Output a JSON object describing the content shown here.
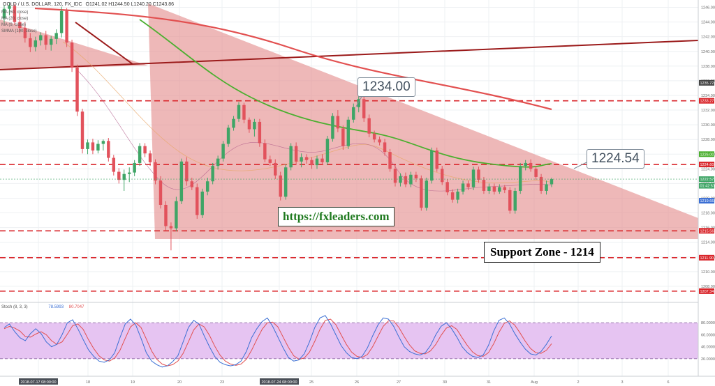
{
  "header": {
    "symbol": "GOLD / U.S. DOLLAR, 120, FX_IDC",
    "ohlc": "O1241.02  H1244.50  L1240.20  C1243.86"
  },
  "legend": [
    "MA (50, close)",
    "MA (20, close)",
    "MA (9, close)",
    "SMMA (100, close)"
  ],
  "stoch_label": "Stoch (8, 3, 3)",
  "stoch_values": [
    "78.5993",
    "80.7047"
  ],
  "annotations": {
    "high_label": "1234.00",
    "current_label": "1224.54",
    "url": "https://fxleaders.com",
    "support": "Support Zone - 1214"
  },
  "colors": {
    "up": "#3fa566",
    "down": "#e2525c",
    "triangle": "#e38c8c",
    "ma_green": "#4caf30",
    "ma_red": "#e25050",
    "trendline": "#9b1a1a",
    "stoch_bg": "#e6c4f2",
    "stoch_k": "#3b6fd4",
    "stoch_d": "#e25050",
    "level": "#d9262b"
  },
  "chart_data": {
    "type": "candlestick",
    "ylim": [
      1206,
      1247
    ],
    "x_ticks": [
      "2018-07-17 08:00:00",
      "18",
      "19",
      "20",
      "23",
      "2018-07-24 08:00:00",
      "25",
      "26",
      "27",
      "30",
      "31",
      "Aug",
      "2",
      "3",
      "6"
    ],
    "y_ticks": [
      1208,
      1210,
      1212,
      1214,
      1216,
      1218,
      1220,
      1222,
      1224,
      1226,
      1228,
      1230,
      1232,
      1234,
      1236,
      1238,
      1240,
      1242,
      1244,
      1246
    ],
    "price_labels": [
      "1235.72",
      "1233.27",
      "1224.60",
      "1226.00",
      "1222.57",
      "01:42:57",
      "1219.66",
      "1215.56",
      "1211.90",
      "1207.34"
    ],
    "horizontal_levels": [
      1233.27,
      1224.6,
      1215.56,
      1211.9,
      1207.34
    ],
    "ohlc": [
      [
        1244.5,
        1246.3,
        1243.8,
        1245.8
      ],
      [
        1245.8,
        1246.6,
        1244.9,
        1246.2
      ],
      [
        1246.2,
        1246.5,
        1243.6,
        1244.0
      ],
      [
        1244.0,
        1245.2,
        1242.5,
        1243.2
      ],
      [
        1243.2,
        1244.0,
        1241.2,
        1241.8
      ],
      [
        1241.8,
        1242.5,
        1239.9,
        1240.6
      ],
      [
        1240.6,
        1242.0,
        1240.0,
        1241.5
      ],
      [
        1241.5,
        1242.6,
        1240.8,
        1242.2
      ],
      [
        1242.2,
        1242.8,
        1240.2,
        1240.9
      ],
      [
        1240.9,
        1242.1,
        1240.1,
        1241.7
      ],
      [
        1241.7,
        1243.0,
        1241.0,
        1242.5
      ],
      [
        1242.5,
        1246.1,
        1241.9,
        1245.5
      ],
      [
        1245.5,
        1245.9,
        1240.6,
        1241.2
      ],
      [
        1241.2,
        1241.6,
        1237.2,
        1237.8
      ],
      [
        1237.8,
        1238.2,
        1231.2,
        1231.8
      ],
      [
        1231.8,
        1232.2,
        1226.1,
        1226.7
      ],
      [
        1226.7,
        1228.0,
        1226.0,
        1227.6
      ],
      [
        1227.6,
        1228.1,
        1226.0,
        1226.5
      ],
      [
        1226.5,
        1227.9,
        1226.1,
        1227.4
      ],
      [
        1227.4,
        1228.0,
        1226.5,
        1227.8
      ],
      [
        1227.8,
        1228.2,
        1225.0,
        1225.5
      ],
      [
        1225.5,
        1225.9,
        1223.1,
        1223.6
      ],
      [
        1223.6,
        1224.1,
        1222.0,
        1222.5
      ],
      [
        1222.5,
        1223.9,
        1221.0,
        1223.3
      ],
      [
        1223.3,
        1224.2,
        1222.2,
        1223.5
      ],
      [
        1223.5,
        1225.2,
        1223.0,
        1224.8
      ],
      [
        1224.8,
        1227.5,
        1224.4,
        1227.1
      ],
      [
        1227.1,
        1227.5,
        1225.6,
        1226.1
      ],
      [
        1226.1,
        1226.5,
        1224.4,
        1224.9
      ],
      [
        1224.9,
        1225.3,
        1221.9,
        1222.4
      ],
      [
        1222.4,
        1223.0,
        1218.6,
        1219.1
      ],
      [
        1219.1,
        1219.6,
        1215.6,
        1216.2
      ],
      [
        1216.2,
        1216.7,
        1212.9,
        1215.9
      ],
      [
        1215.9,
        1220.2,
        1215.5,
        1219.6
      ],
      [
        1219.6,
        1225.4,
        1219.2,
        1225.0
      ],
      [
        1225.0,
        1225.6,
        1221.7,
        1222.3
      ],
      [
        1222.3,
        1222.8,
        1221.1,
        1221.5
      ],
      [
        1221.5,
        1222.0,
        1217.2,
        1217.7
      ],
      [
        1217.7,
        1221.3,
        1217.3,
        1220.9
      ],
      [
        1220.9,
        1222.8,
        1220.4,
        1222.3
      ],
      [
        1222.3,
        1224.8,
        1221.9,
        1224.4
      ],
      [
        1224.4,
        1225.8,
        1223.9,
        1225.4
      ],
      [
        1225.4,
        1227.8,
        1225.0,
        1227.4
      ],
      [
        1227.4,
        1230.0,
        1227.0,
        1229.6
      ],
      [
        1229.6,
        1231.2,
        1229.2,
        1230.8
      ],
      [
        1230.8,
        1233.1,
        1230.4,
        1232.7
      ],
      [
        1232.7,
        1233.0,
        1230.2,
        1230.7
      ],
      [
        1230.7,
        1231.0,
        1228.9,
        1229.4
      ],
      [
        1229.4,
        1230.8,
        1228.4,
        1230.4
      ],
      [
        1230.4,
        1230.8,
        1227.0,
        1227.5
      ],
      [
        1227.5,
        1228.0,
        1224.9,
        1225.3
      ],
      [
        1225.3,
        1225.8,
        1224.4,
        1224.8
      ],
      [
        1224.8,
        1225.3,
        1222.6,
        1223.1
      ],
      [
        1223.1,
        1223.6,
        1219.7,
        1220.2
      ],
      [
        1220.2,
        1224.6,
        1219.8,
        1224.2
      ],
      [
        1224.2,
        1227.5,
        1223.8,
        1227.1
      ],
      [
        1227.1,
        1227.6,
        1224.5,
        1225.0
      ],
      [
        1225.0,
        1226.1,
        1224.2,
        1225.6
      ],
      [
        1225.6,
        1226.0,
        1224.7,
        1225.2
      ],
      [
        1225.2,
        1225.6,
        1224.0,
        1224.5
      ],
      [
        1224.5,
        1225.8,
        1224.0,
        1225.4
      ],
      [
        1225.4,
        1226.0,
        1224.5,
        1224.9
      ],
      [
        1224.9,
        1228.5,
        1224.5,
        1228.1
      ],
      [
        1228.1,
        1231.6,
        1227.7,
        1231.2
      ],
      [
        1231.2,
        1232.0,
        1229.0,
        1229.5
      ],
      [
        1229.5,
        1229.9,
        1226.6,
        1227.1
      ],
      [
        1227.1,
        1231.1,
        1226.7,
        1230.7
      ],
      [
        1230.7,
        1232.9,
        1230.3,
        1232.4
      ],
      [
        1232.4,
        1234.0,
        1231.7,
        1233.5
      ],
      [
        1233.5,
        1233.8,
        1230.4,
        1230.9
      ],
      [
        1230.9,
        1231.4,
        1228.3,
        1228.8
      ],
      [
        1228.8,
        1229.2,
        1227.6,
        1228.0
      ],
      [
        1228.0,
        1228.4,
        1227.2,
        1227.6
      ],
      [
        1227.6,
        1228.1,
        1225.8,
        1226.3
      ],
      [
        1226.3,
        1226.7,
        1223.6,
        1224.0
      ],
      [
        1224.0,
        1224.5,
        1221.6,
        1222.1
      ],
      [
        1222.1,
        1223.4,
        1221.6,
        1223.0
      ],
      [
        1223.0,
        1223.5,
        1221.5,
        1221.9
      ],
      [
        1221.9,
        1223.6,
        1221.5,
        1223.2
      ],
      [
        1223.2,
        1223.6,
        1222.2,
        1222.7
      ],
      [
        1222.7,
        1223.1,
        1218.3,
        1218.7
      ],
      [
        1218.7,
        1222.8,
        1218.3,
        1222.4
      ],
      [
        1222.4,
        1226.9,
        1222.0,
        1226.5
      ],
      [
        1226.5,
        1226.9,
        1223.6,
        1224.0
      ],
      [
        1224.0,
        1224.4,
        1221.8,
        1222.2
      ],
      [
        1222.2,
        1222.6,
        1220.4,
        1220.8
      ],
      [
        1220.8,
        1221.2,
        1219.4,
        1219.8
      ],
      [
        1219.8,
        1221.3,
        1219.3,
        1220.9
      ],
      [
        1220.9,
        1222.4,
        1220.5,
        1222.0
      ],
      [
        1222.0,
        1222.4,
        1221.1,
        1221.5
      ],
      [
        1221.5,
        1224.3,
        1221.1,
        1223.9
      ],
      [
        1223.9,
        1224.3,
        1222.1,
        1222.5
      ],
      [
        1222.5,
        1222.9,
        1220.6,
        1221.0
      ],
      [
        1221.0,
        1222.0,
        1220.6,
        1221.6
      ],
      [
        1221.6,
        1222.0,
        1220.5,
        1220.9
      ],
      [
        1220.9,
        1221.9,
        1220.6,
        1221.5
      ],
      [
        1221.5,
        1221.8,
        1220.7,
        1221.1
      ],
      [
        1221.1,
        1221.5,
        1217.9,
        1218.3
      ],
      [
        1218.3,
        1221.4,
        1217.9,
        1221.0
      ],
      [
        1221.0,
        1224.8,
        1220.6,
        1224.4
      ],
      [
        1224.4,
        1225.2,
        1223.8,
        1224.8
      ],
      [
        1224.8,
        1225.3,
        1223.6,
        1224.0
      ],
      [
        1224.0,
        1224.4,
        1222.5,
        1222.9
      ],
      [
        1222.9,
        1223.3,
        1220.6,
        1221.0
      ],
      [
        1221.0,
        1222.4,
        1220.5,
        1221.9
      ],
      [
        1221.9,
        1222.8,
        1221.5,
        1222.6
      ]
    ],
    "stoch_k": [
      72,
      78,
      65,
      55,
      50,
      62,
      70,
      62,
      48,
      40,
      44,
      60,
      80,
      85,
      70,
      52,
      35,
      24,
      16,
      14,
      18,
      30,
      55,
      78,
      86,
      76,
      54,
      30,
      16,
      10,
      6,
      8,
      15,
      25,
      48,
      72,
      84,
      78,
      58,
      40,
      24,
      14,
      10,
      8,
      10,
      16,
      32,
      55,
      70,
      82,
      88,
      74,
      56,
      38,
      22,
      16,
      18,
      28,
      48,
      72,
      88,
      92,
      78,
      60,
      42,
      30,
      22,
      20,
      24,
      38,
      58,
      76,
      88,
      86,
      74,
      56,
      40,
      32,
      28,
      26,
      30,
      42,
      60,
      74,
      80,
      70,
      56,
      40,
      30,
      24,
      22,
      26,
      42,
      66,
      84,
      88,
      78,
      62,
      48,
      36,
      28,
      26,
      32,
      44,
      58
    ],
    "stoch_d": [
      70,
      74,
      71,
      66,
      57,
      56,
      61,
      65,
      60,
      50,
      44,
      48,
      61,
      75,
      78,
      69,
      52,
      37,
      25,
      18,
      16,
      21,
      34,
      54,
      73,
      80,
      72,
      53,
      33,
      19,
      11,
      8,
      10,
      16,
      29,
      48,
      68,
      78,
      73,
      59,
      41,
      26,
      16,
      11,
      9,
      11,
      19,
      34,
      52,
      69,
      80,
      81,
      73,
      56,
      39,
      25,
      19,
      21,
      31,
      49,
      69,
      84,
      86,
      77,
      60,
      44,
      31,
      24,
      22,
      27,
      40,
      57,
      74,
      83,
      83,
      72,
      57,
      43,
      33,
      29,
      28,
      33,
      44,
      59,
      71,
      75,
      69,
      55,
      42,
      31,
      25,
      24,
      30,
      45,
      64,
      79,
      83,
      76,
      63,
      49,
      37,
      30,
      29,
      34,
      45
    ]
  }
}
